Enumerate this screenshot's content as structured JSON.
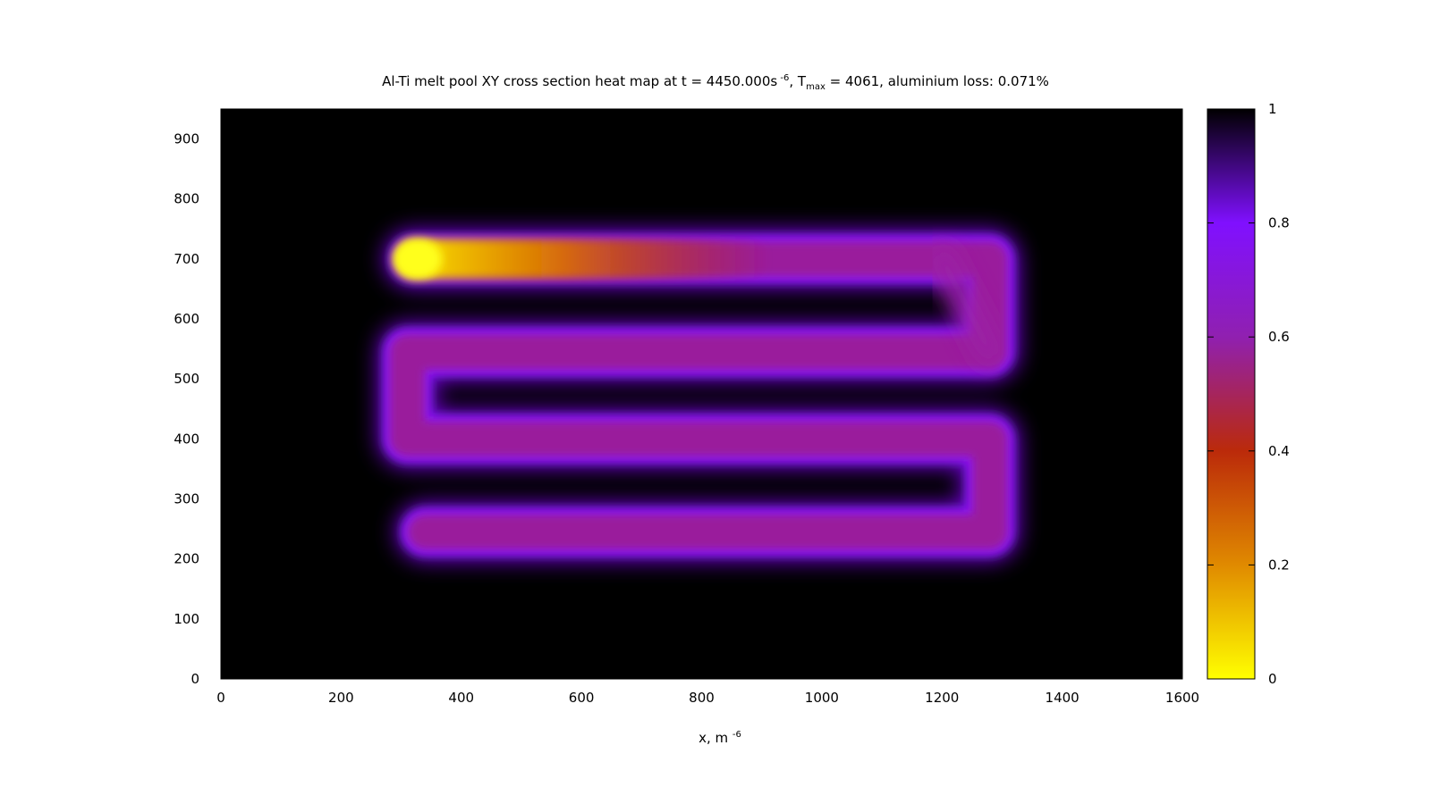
{
  "chart_data": {
    "type": "heatmap",
    "title": {
      "prefix": "Al-Ti melt pool XY cross section heat map at t = 4450.000s",
      "time_exponent": "-6",
      "tmax_symbol": "T",
      "tmax_subscript": "max",
      "tmax_text": " = 4061, aluminium loss: 0.071%"
    },
    "xlabel": {
      "text": "x, m",
      "exponent": "-6"
    },
    "ylabel": "",
    "xlim": [
      0,
      1600
    ],
    "ylim": [
      0,
      950
    ],
    "x_ticks": [
      0,
      200,
      400,
      600,
      800,
      1000,
      1200,
      1400,
      1600
    ],
    "y_ticks": [
      0,
      100,
      200,
      300,
      400,
      500,
      600,
      700,
      800,
      900
    ],
    "colorbar": {
      "range": [
        0,
        1
      ],
      "ticks": [
        0,
        0.2,
        0.4,
        0.6,
        0.8,
        1
      ],
      "tick_labels": [
        "0",
        "0.2",
        "0.4",
        "0.6",
        "0.8",
        "1"
      ],
      "palette": [
        "#ffff00",
        "#e08a00",
        "#bb2a0a",
        "#9020b0",
        "#8010ff",
        "#000000"
      ]
    },
    "background_value": 1,
    "track": {
      "description": "serpentine laser scan track (heat map value along path)",
      "path": [
        [
          320,
          700
        ],
        [
          1280,
          700
        ],
        [
          1280,
          545
        ],
        [
          310,
          545
        ],
        [
          310,
          400
        ],
        [
          1280,
          400
        ],
        [
          1280,
          245
        ],
        [
          340,
          245
        ]
      ],
      "values_along_path": [
        0.0,
        0.15,
        0.35,
        0.48,
        0.48,
        0.5,
        0.55,
        0.6,
        0.62,
        0.5,
        0.46,
        0.46,
        0.6,
        0.5,
        0.46,
        0.46
      ]
    }
  }
}
